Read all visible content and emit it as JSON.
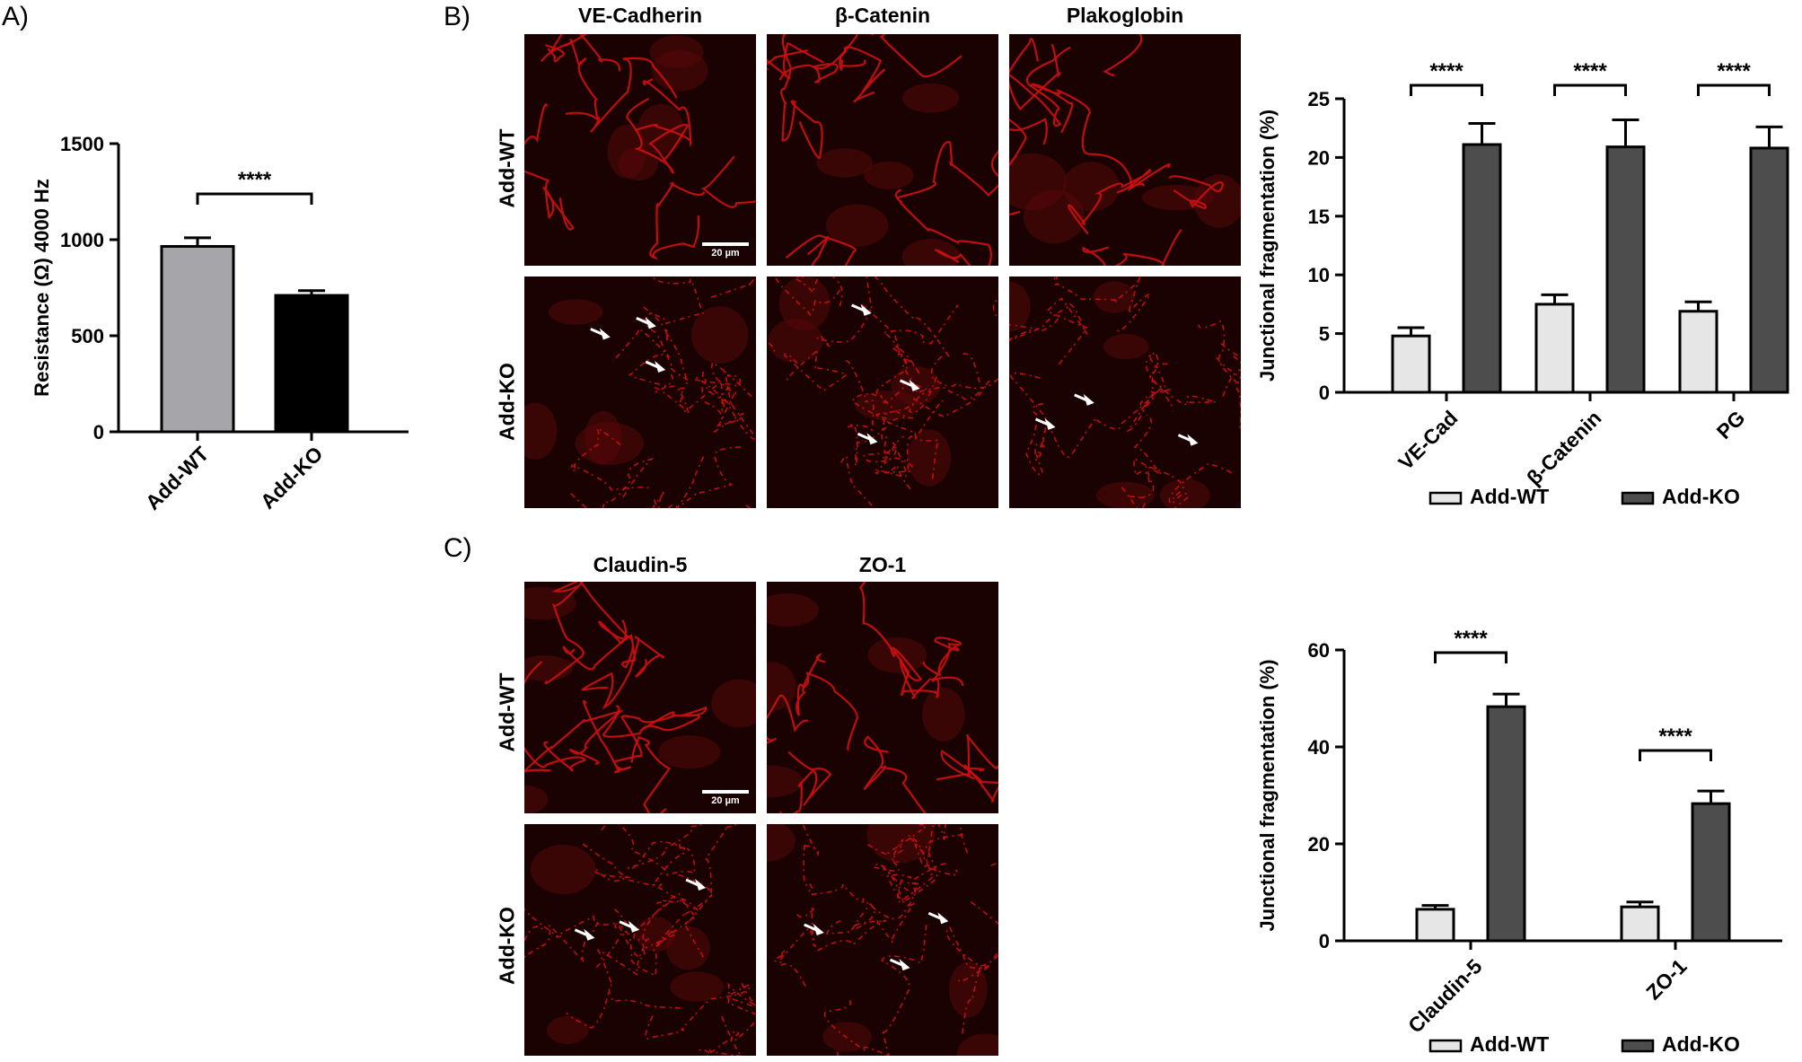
{
  "panels": {
    "a": "A)",
    "b": "B)",
    "c": "C)"
  },
  "colors": {
    "wt_light": "#A6A6AA",
    "ko_black": "#000000",
    "wt_fill": "#E6E6E6",
    "ko_dark": "#4D4D4D",
    "stain": "#D01010"
  },
  "micrograph_b": {
    "columns": [
      "VE-Cadherin",
      "β-Catenin",
      "Plakoglobin"
    ],
    "rows": [
      "Add-WT",
      "Add-KO"
    ],
    "scale_text": "20 µm"
  },
  "micrograph_c": {
    "columns": [
      "Claudin-5",
      "ZO-1"
    ],
    "rows": [
      "Add-WT",
      "Add-KO"
    ],
    "scale_text": "20 µm"
  },
  "chart_data": [
    {
      "id": "a",
      "type": "bar",
      "categories": [
        "Add-WT",
        "Add-KO"
      ],
      "values": [
        965,
        710
      ],
      "errors": [
        45,
        25
      ],
      "ylabel": "Resistance (Ω) 4000 Hz",
      "ylim": [
        0,
        1500
      ],
      "yticks": [
        0,
        500,
        1000,
        1500
      ],
      "significance": [
        {
          "label": "****",
          "between": [
            0,
            1
          ]
        }
      ]
    },
    {
      "id": "b",
      "type": "bar",
      "categories": [
        "VE-Cad",
        "β-Catenin",
        "PG"
      ],
      "series": [
        {
          "name": "Add-WT",
          "values": [
            4.8,
            7.5,
            6.9
          ],
          "errors": [
            0.7,
            0.8,
            0.8
          ]
        },
        {
          "name": "Add-KO",
          "values": [
            21.1,
            20.9,
            20.8
          ],
          "errors": [
            1.8,
            2.3,
            1.8
          ]
        }
      ],
      "ylabel": "Junctional fragmentation (%)",
      "ylim": [
        0,
        25
      ],
      "yticks": [
        0,
        5,
        10,
        15,
        20,
        25
      ],
      "significance": [
        "****",
        "****",
        "****"
      ],
      "legend": "bottom"
    },
    {
      "id": "c",
      "type": "bar",
      "categories": [
        "Claudin-5",
        "ZO-1"
      ],
      "series": [
        {
          "name": "Add-WT",
          "values": [
            6.5,
            7.0
          ],
          "errors": [
            0.8,
            1.0
          ]
        },
        {
          "name": "Add-KO",
          "values": [
            48.3,
            28.3
          ],
          "errors": [
            2.6,
            2.6
          ]
        }
      ],
      "ylabel": "Junctional fragmentation (%)",
      "ylim": [
        0,
        60
      ],
      "yticks": [
        0,
        20,
        40,
        60
      ],
      "significance": [
        "****",
        "****"
      ],
      "legend": "bottom"
    }
  ]
}
